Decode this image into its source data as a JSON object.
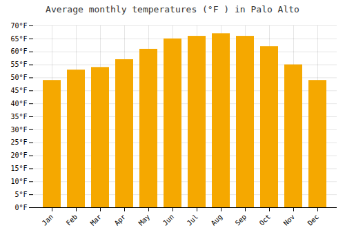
{
  "chart_data": {
    "type": "bar",
    "title": "Average monthly temperatures (°F ) in Palo Alto",
    "categories": [
      "Jan",
      "Feb",
      "Mar",
      "Apr",
      "May",
      "Jun",
      "Jul",
      "Aug",
      "Sep",
      "Oct",
      "Nov",
      "Dec"
    ],
    "values": [
      49,
      53,
      54,
      57,
      61,
      65,
      66,
      67,
      66,
      62,
      55,
      49
    ],
    "color": "#F5A800",
    "ylim": [
      0,
      70
    ],
    "yticks": [
      {
        "value": 0,
        "label": "0°F"
      },
      {
        "value": 5,
        "label": "5°F"
      },
      {
        "value": 10,
        "label": "10°F"
      },
      {
        "value": 15,
        "label": "15°F"
      },
      {
        "value": 20,
        "label": "20°F"
      },
      {
        "value": 25,
        "label": "25°F"
      },
      {
        "value": 30,
        "label": "30°F"
      },
      {
        "value": 35,
        "label": "35°F"
      },
      {
        "value": 40,
        "label": "40°F"
      },
      {
        "value": 45,
        "label": "45°F"
      },
      {
        "value": 50,
        "label": "50°F"
      },
      {
        "value": 55,
        "label": "55°F"
      },
      {
        "value": 60,
        "label": "60°F"
      },
      {
        "value": 65,
        "label": "65°F"
      },
      {
        "value": 70,
        "label": "70°F"
      }
    ],
    "grid": true
  }
}
